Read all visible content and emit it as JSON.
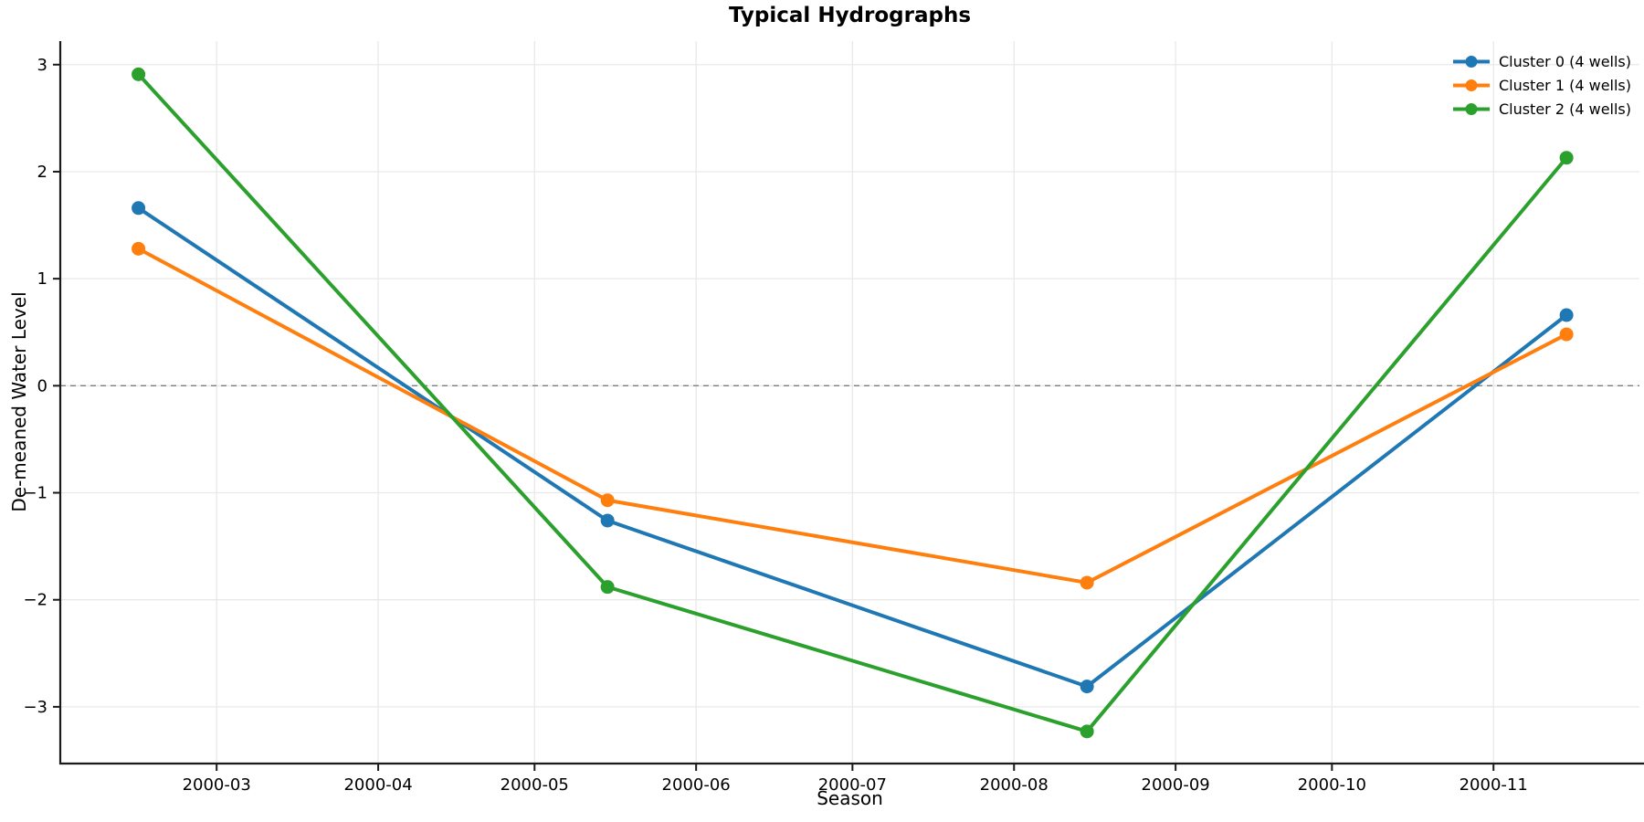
{
  "chart_data": {
    "type": "line",
    "title": "Typical Hydrographs",
    "xlabel": "Season",
    "ylabel": "De-meaned Water Level",
    "x": [
      "2000-02-15",
      "2000-05-15",
      "2000-08-15",
      "2000-11-15"
    ],
    "series": [
      {
        "name": "Cluster 0 (4 wells)",
        "color": "#1f77b4",
        "values": [
          1.66,
          -1.26,
          -2.81,
          0.66
        ]
      },
      {
        "name": "Cluster 1 (4 wells)",
        "color": "#ff7f0e",
        "values": [
          1.28,
          -1.07,
          -1.84,
          0.48
        ]
      },
      {
        "name": "Cluster 2 (4 wells)",
        "color": "#2ca02c",
        "values": [
          2.91,
          -1.88,
          -3.23,
          2.13
        ]
      }
    ],
    "x_tick_labels": [
      "2000-03",
      "2000-04",
      "2000-05",
      "2000-06",
      "2000-07",
      "2000-08",
      "2000-09",
      "2000-10",
      "2000-11"
    ],
    "y_ticks": [
      3,
      2,
      1,
      0,
      -1,
      -2,
      -3
    ],
    "xlim": [
      "2000-01-31",
      "2000-11-29"
    ],
    "ylim": [
      -3.53,
      3.22
    ],
    "grid": true,
    "legend_position": "upper right",
    "legend_frame": false,
    "zero_line": {
      "y": 0,
      "style": "dashed",
      "color": "#7f7f7f"
    },
    "styles": {
      "grid_color": "#e9e9e9",
      "spine_color": "#1a1a1a",
      "tick_color": "#1a1a1a",
      "background": "#ffffff"
    }
  }
}
